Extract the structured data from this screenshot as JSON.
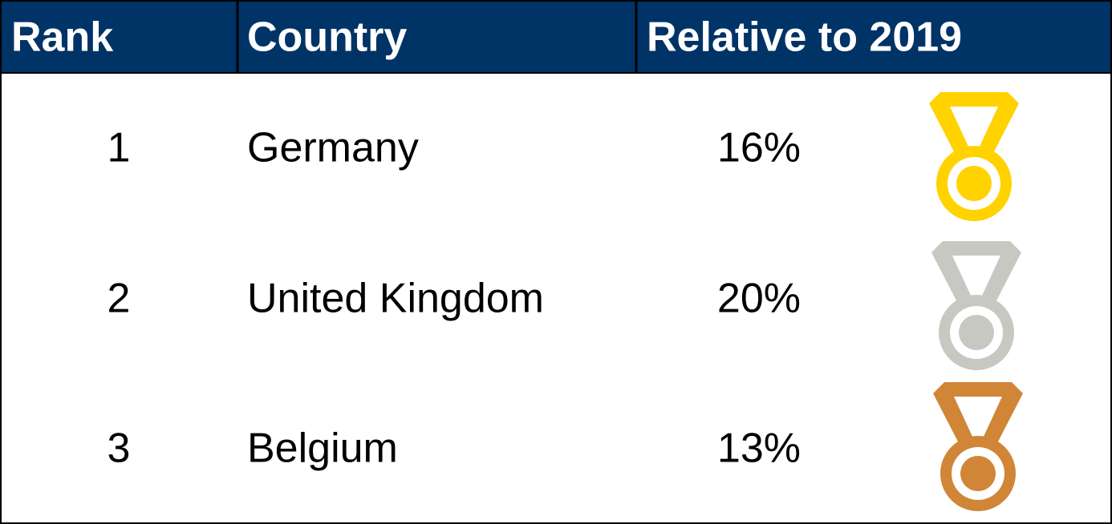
{
  "table": {
    "header": [
      "Rank",
      "Country",
      "Relative to 2019"
    ],
    "rows": [
      [
        "1",
        "Germany",
        "16%"
      ],
      [
        "2",
        "United Kingdom",
        "20%"
      ],
      [
        "3",
        "Belgium",
        "13%"
      ]
    ]
  }
}
